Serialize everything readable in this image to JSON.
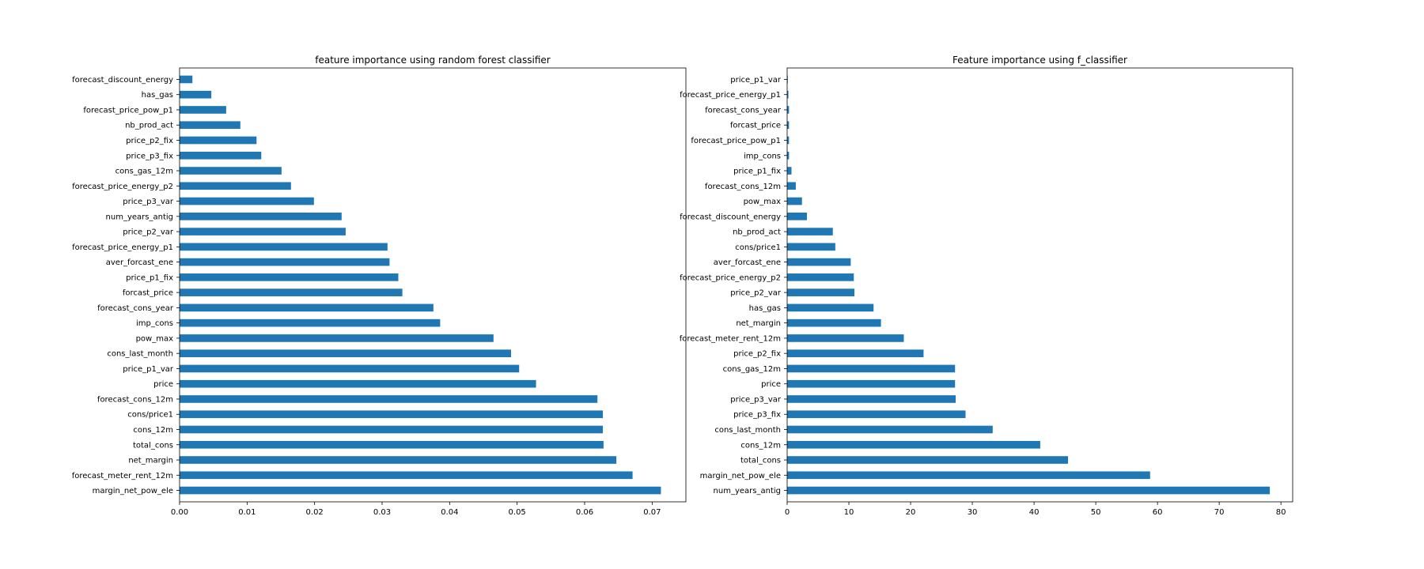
{
  "bar_color": "#1f77b4",
  "chart_data": [
    {
      "type": "bar",
      "orientation": "horizontal",
      "title": "feature importance using random forest classifier",
      "xlabel": "",
      "ylabel": "",
      "xlim": [
        0,
        0.075
      ],
      "xticks": [
        0.0,
        0.01,
        0.02,
        0.03,
        0.04,
        0.05,
        0.06,
        0.07
      ],
      "xtick_labels": [
        "0.00",
        "0.01",
        "0.02",
        "0.03",
        "0.04",
        "0.05",
        "0.06",
        "0.07"
      ],
      "grid": false,
      "categories": [
        "margin_net_pow_ele",
        "forecast_meter_rent_12m",
        "net_margin",
        "total_cons",
        "cons_12m",
        "cons/price1",
        "forecast_cons_12m",
        "price",
        "price_p1_var",
        "cons_last_month",
        "pow_max",
        "imp_cons",
        "forecast_cons_year",
        "forcast_price",
        "price_p1_fix",
        "aver_forcast_ene",
        "forecast_price_energy_p1",
        "price_p2_var",
        "num_years_antig",
        "price_p3_var",
        "forecast_price_energy_p2",
        "cons_gas_12m",
        "price_p3_fix",
        "price_p2_fix",
        "nb_prod_act",
        "forecast_price_pow_p1",
        "has_gas",
        "forecast_discount_energy"
      ],
      "values": [
        0.0713,
        0.0671,
        0.0647,
        0.0628,
        0.0627,
        0.0627,
        0.0619,
        0.0528,
        0.0503,
        0.0491,
        0.0465,
        0.0386,
        0.0376,
        0.033,
        0.0324,
        0.0311,
        0.0308,
        0.0246,
        0.024,
        0.0199,
        0.0165,
        0.0151,
        0.0121,
        0.0114,
        0.009,
        0.0069,
        0.0047,
        0.0019
      ]
    },
    {
      "type": "bar",
      "orientation": "horizontal",
      "title": "Feature importance using f_classifier",
      "xlabel": "",
      "ylabel": "",
      "xlim": [
        0,
        81.9
      ],
      "xticks": [
        0,
        10,
        20,
        30,
        40,
        50,
        60,
        70,
        80
      ],
      "xtick_labels": [
        "0",
        "10",
        "20",
        "30",
        "40",
        "50",
        "60",
        "70",
        "80"
      ],
      "grid": false,
      "categories": [
        "num_years_antig",
        "margin_net_pow_ele",
        "total_cons",
        "cons_12m",
        "cons_last_month",
        "price_p3_fix",
        "price_p3_var",
        "price",
        "cons_gas_12m",
        "price_p2_fix",
        "forecast_meter_rent_12m",
        "net_margin",
        "has_gas",
        "price_p2_var",
        "forecast_price_energy_p2",
        "aver_forcast_ene",
        "cons/price1",
        "nb_prod_act",
        "forecast_discount_energy",
        "pow_max",
        "forecast_cons_12m",
        "price_p1_fix",
        "imp_cons",
        "forecast_price_pow_p1",
        "forcast_price",
        "forecast_cons_year",
        "forecast_price_energy_p1",
        "price_p1_var"
      ],
      "values": [
        78.2,
        58.8,
        45.5,
        41.0,
        33.3,
        28.9,
        27.3,
        27.2,
        27.2,
        22.1,
        18.9,
        15.2,
        14.0,
        10.9,
        10.8,
        10.3,
        7.8,
        7.4,
        3.2,
        2.4,
        1.4,
        0.7,
        0.3,
        0.3,
        0.3,
        0.3,
        0.2,
        0.1
      ]
    }
  ]
}
